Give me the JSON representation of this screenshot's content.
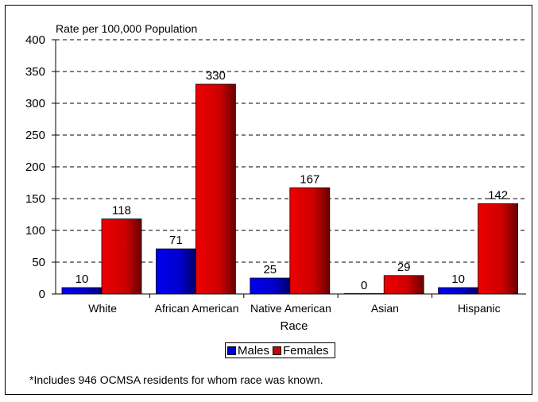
{
  "chart_data": {
    "type": "bar",
    "title": "",
    "ylabel": "Rate per 100,000 Population",
    "xlabel": "Race",
    "ylim": [
      0,
      400
    ],
    "yticks": [
      "0",
      "50",
      "100",
      "150",
      "200",
      "250",
      "300",
      "350",
      "400"
    ],
    "grid": "horizontal dashed",
    "legend_position": "bottom",
    "categories": [
      "White",
      "African American",
      "Native American",
      "Asian",
      "Hispanic"
    ],
    "series": [
      {
        "name": "Males",
        "values": [
          10,
          71,
          25,
          0,
          10
        ],
        "color": "#0000cc"
      },
      {
        "name": "Females",
        "values": [
          118,
          330,
          167,
          29,
          142
        ],
        "color": "#cc0000"
      }
    ],
    "footnote": "*Includes 946 OCMSA residents for whom race was known."
  }
}
